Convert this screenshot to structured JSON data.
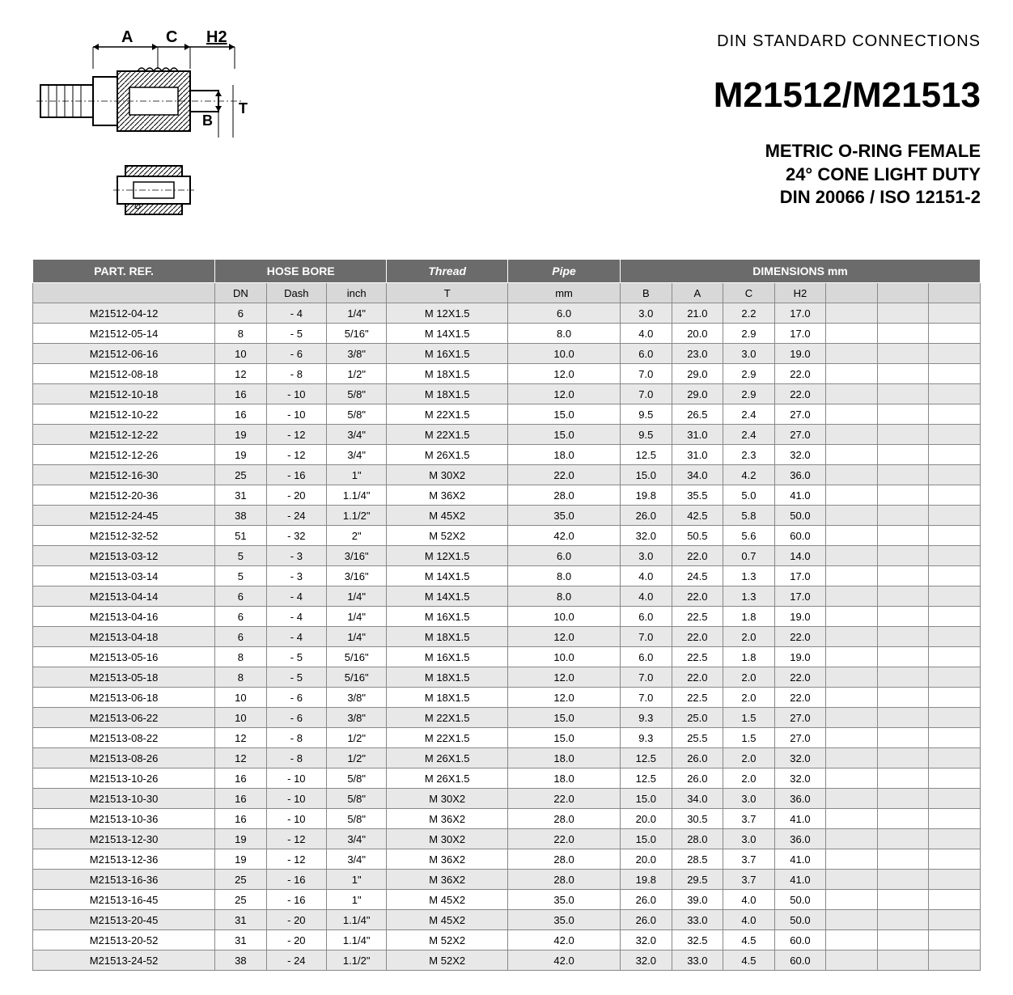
{
  "header": {
    "standard_label": "DIN STANDARD CONNECTIONS",
    "part_number": "M21512/M21513",
    "description_line1": "METRIC O-RING FEMALE",
    "description_line2": "24° CONE LIGHT DUTY",
    "description_line3": "DIN 20066 / ISO 12151-2",
    "dim_labels": {
      "A": "A",
      "C": "C",
      "H2": "H2",
      "B": "B",
      "T": "T"
    }
  },
  "table": {
    "group_headers": {
      "partref": "PART. REF.",
      "hosebore": "HOSE BORE",
      "thread": "Thread",
      "pipe": "Pipe",
      "dimensions": "DIMENSIONS mm"
    },
    "sub_headers": {
      "partref": "",
      "dn": "DN",
      "dash": "Dash",
      "inch": "inch",
      "thread": "T",
      "pipe": "mm",
      "B": "B",
      "A": "A",
      "C": "C",
      "H2": "H2",
      "e1": "",
      "e2": "",
      "e3": ""
    },
    "rows": [
      {
        "partref": "M21512-04-12",
        "dn": "6",
        "dash": "- 4",
        "inch": "1/4\"",
        "thread": "M 12X1.5",
        "pipe": "6.0",
        "B": "3.0",
        "A": "21.0",
        "C": "2.2",
        "H2": "17.0"
      },
      {
        "partref": "M21512-05-14",
        "dn": "8",
        "dash": "- 5",
        "inch": "5/16\"",
        "thread": "M 14X1.5",
        "pipe": "8.0",
        "B": "4.0",
        "A": "20.0",
        "C": "2.9",
        "H2": "17.0"
      },
      {
        "partref": "M21512-06-16",
        "dn": "10",
        "dash": "- 6",
        "inch": "3/8\"",
        "thread": "M 16X1.5",
        "pipe": "10.0",
        "B": "6.0",
        "A": "23.0",
        "C": "3.0",
        "H2": "19.0"
      },
      {
        "partref": "M21512-08-18",
        "dn": "12",
        "dash": "- 8",
        "inch": "1/2\"",
        "thread": "M 18X1.5",
        "pipe": "12.0",
        "B": "7.0",
        "A": "29.0",
        "C": "2.9",
        "H2": "22.0"
      },
      {
        "partref": "M21512-10-18",
        "dn": "16",
        "dash": "- 10",
        "inch": "5/8\"",
        "thread": "M 18X1.5",
        "pipe": "12.0",
        "B": "7.0",
        "A": "29.0",
        "C": "2.9",
        "H2": "22.0"
      },
      {
        "partref": "M21512-10-22",
        "dn": "16",
        "dash": "- 10",
        "inch": "5/8\"",
        "thread": "M 22X1.5",
        "pipe": "15.0",
        "B": "9.5",
        "A": "26.5",
        "C": "2.4",
        "H2": "27.0"
      },
      {
        "partref": "M21512-12-22",
        "dn": "19",
        "dash": "- 12",
        "inch": "3/4\"",
        "thread": "M 22X1.5",
        "pipe": "15.0",
        "B": "9.5",
        "A": "31.0",
        "C": "2.4",
        "H2": "27.0"
      },
      {
        "partref": "M21512-12-26",
        "dn": "19",
        "dash": "- 12",
        "inch": "3/4\"",
        "thread": "M 26X1.5",
        "pipe": "18.0",
        "B": "12.5",
        "A": "31.0",
        "C": "2.3",
        "H2": "32.0"
      },
      {
        "partref": "M21512-16-30",
        "dn": "25",
        "dash": "- 16",
        "inch": "1\"",
        "thread": "M 30X2",
        "pipe": "22.0",
        "B": "15.0",
        "A": "34.0",
        "C": "4.2",
        "H2": "36.0"
      },
      {
        "partref": "M21512-20-36",
        "dn": "31",
        "dash": "- 20",
        "inch": "1.1/4\"",
        "thread": "M 36X2",
        "pipe": "28.0",
        "B": "19.8",
        "A": "35.5",
        "C": "5.0",
        "H2": "41.0"
      },
      {
        "partref": "M21512-24-45",
        "dn": "38",
        "dash": "- 24",
        "inch": "1.1/2\"",
        "thread": "M 45X2",
        "pipe": "35.0",
        "B": "26.0",
        "A": "42.5",
        "C": "5.8",
        "H2": "50.0"
      },
      {
        "partref": "M21512-32-52",
        "dn": "51",
        "dash": "- 32",
        "inch": "2\"",
        "thread": "M 52X2",
        "pipe": "42.0",
        "B": "32.0",
        "A": "50.5",
        "C": "5.6",
        "H2": "60.0"
      },
      {
        "partref": "M21513-03-12",
        "dn": "5",
        "dash": "- 3",
        "inch": "3/16\"",
        "thread": "M 12X1.5",
        "pipe": "6.0",
        "B": "3.0",
        "A": "22.0",
        "C": "0.7",
        "H2": "14.0"
      },
      {
        "partref": "M21513-03-14",
        "dn": "5",
        "dash": "- 3",
        "inch": "3/16\"",
        "thread": "M 14X1.5",
        "pipe": "8.0",
        "B": "4.0",
        "A": "24.5",
        "C": "1.3",
        "H2": "17.0"
      },
      {
        "partref": "M21513-04-14",
        "dn": "6",
        "dash": "- 4",
        "inch": "1/4\"",
        "thread": "M 14X1.5",
        "pipe": "8.0",
        "B": "4.0",
        "A": "22.0",
        "C": "1.3",
        "H2": "17.0"
      },
      {
        "partref": "M21513-04-16",
        "dn": "6",
        "dash": "- 4",
        "inch": "1/4\"",
        "thread": "M 16X1.5",
        "pipe": "10.0",
        "B": "6.0",
        "A": "22.5",
        "C": "1.8",
        "H2": "19.0"
      },
      {
        "partref": "M21513-04-18",
        "dn": "6",
        "dash": "- 4",
        "inch": "1/4\"",
        "thread": "M 18X1.5",
        "pipe": "12.0",
        "B": "7.0",
        "A": "22.0",
        "C": "2.0",
        "H2": "22.0"
      },
      {
        "partref": "M21513-05-16",
        "dn": "8",
        "dash": "- 5",
        "inch": "5/16\"",
        "thread": "M 16X1.5",
        "pipe": "10.0",
        "B": "6.0",
        "A": "22.5",
        "C": "1.8",
        "H2": "19.0"
      },
      {
        "partref": "M21513-05-18",
        "dn": "8",
        "dash": "- 5",
        "inch": "5/16\"",
        "thread": "M 18X1.5",
        "pipe": "12.0",
        "B": "7.0",
        "A": "22.0",
        "C": "2.0",
        "H2": "22.0"
      },
      {
        "partref": "M21513-06-18",
        "dn": "10",
        "dash": "- 6",
        "inch": "3/8\"",
        "thread": "M 18X1.5",
        "pipe": "12.0",
        "B": "7.0",
        "A": "22.5",
        "C": "2.0",
        "H2": "22.0"
      },
      {
        "partref": "M21513-06-22",
        "dn": "10",
        "dash": "- 6",
        "inch": "3/8\"",
        "thread": "M 22X1.5",
        "pipe": "15.0",
        "B": "9.3",
        "A": "25.0",
        "C": "1.5",
        "H2": "27.0"
      },
      {
        "partref": "M21513-08-22",
        "dn": "12",
        "dash": "- 8",
        "inch": "1/2\"",
        "thread": "M 22X1.5",
        "pipe": "15.0",
        "B": "9.3",
        "A": "25.5",
        "C": "1.5",
        "H2": "27.0"
      },
      {
        "partref": "M21513-08-26",
        "dn": "12",
        "dash": "- 8",
        "inch": "1/2\"",
        "thread": "M 26X1.5",
        "pipe": "18.0",
        "B": "12.5",
        "A": "26.0",
        "C": "2.0",
        "H2": "32.0"
      },
      {
        "partref": "M21513-10-26",
        "dn": "16",
        "dash": "- 10",
        "inch": "5/8\"",
        "thread": "M 26X1.5",
        "pipe": "18.0",
        "B": "12.5",
        "A": "26.0",
        "C": "2.0",
        "H2": "32.0"
      },
      {
        "partref": "M21513-10-30",
        "dn": "16",
        "dash": "- 10",
        "inch": "5/8\"",
        "thread": "M 30X2",
        "pipe": "22.0",
        "B": "15.0",
        "A": "34.0",
        "C": "3.0",
        "H2": "36.0"
      },
      {
        "partref": "M21513-10-36",
        "dn": "16",
        "dash": "- 10",
        "inch": "5/8\"",
        "thread": "M 36X2",
        "pipe": "28.0",
        "B": "20.0",
        "A": "30.5",
        "C": "3.7",
        "H2": "41.0"
      },
      {
        "partref": "M21513-12-30",
        "dn": "19",
        "dash": "- 12",
        "inch": "3/4\"",
        "thread": "M 30X2",
        "pipe": "22.0",
        "B": "15.0",
        "A": "28.0",
        "C": "3.0",
        "H2": "36.0"
      },
      {
        "partref": "M21513-12-36",
        "dn": "19",
        "dash": "- 12",
        "inch": "3/4\"",
        "thread": "M 36X2",
        "pipe": "28.0",
        "B": "20.0",
        "A": "28.5",
        "C": "3.7",
        "H2": "41.0"
      },
      {
        "partref": "M21513-16-36",
        "dn": "25",
        "dash": "- 16",
        "inch": "1\"",
        "thread": "M 36X2",
        "pipe": "28.0",
        "B": "19.8",
        "A": "29.5",
        "C": "3.7",
        "H2": "41.0"
      },
      {
        "partref": "M21513-16-45",
        "dn": "25",
        "dash": "- 16",
        "inch": "1\"",
        "thread": "M 45X2",
        "pipe": "35.0",
        "B": "26.0",
        "A": "39.0",
        "C": "4.0",
        "H2": "50.0"
      },
      {
        "partref": "M21513-20-45",
        "dn": "31",
        "dash": "- 20",
        "inch": "1.1/4\"",
        "thread": "M 45X2",
        "pipe": "35.0",
        "B": "26.0",
        "A": "33.0",
        "C": "4.0",
        "H2": "50.0"
      },
      {
        "partref": "M21513-20-52",
        "dn": "31",
        "dash": "- 20",
        "inch": "1.1/4\"",
        "thread": "M 52X2",
        "pipe": "42.0",
        "B": "32.0",
        "A": "32.5",
        "C": "4.5",
        "H2": "60.0"
      },
      {
        "partref": "M21513-24-52",
        "dn": "38",
        "dash": "- 24",
        "inch": "1.1/2\"",
        "thread": "M 52X2",
        "pipe": "42.0",
        "B": "32.0",
        "A": "33.0",
        "C": "4.5",
        "H2": "60.0"
      }
    ]
  }
}
